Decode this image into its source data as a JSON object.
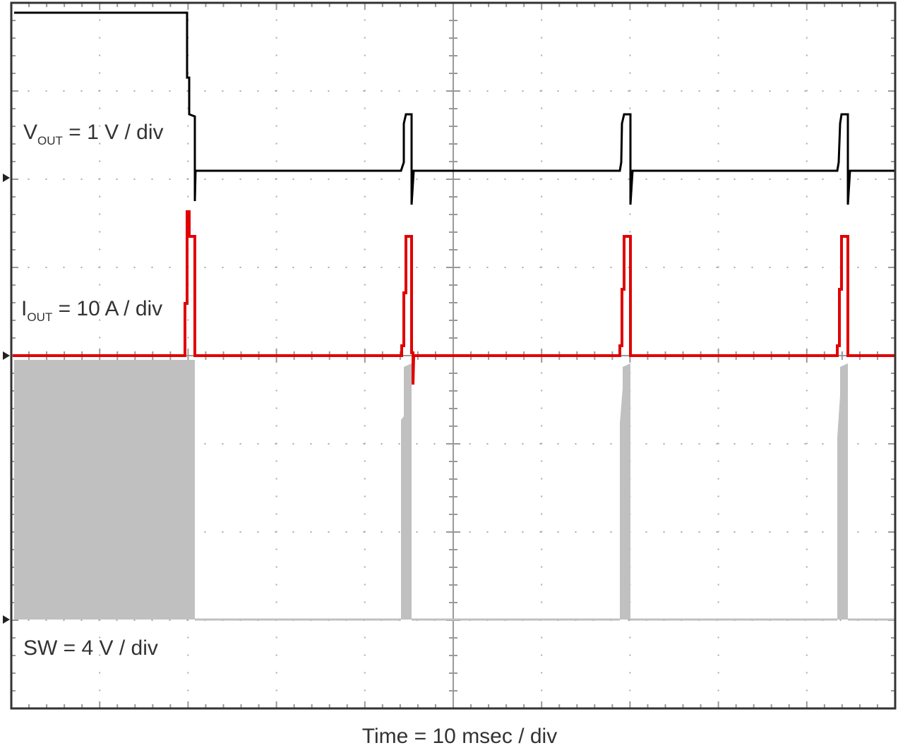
{
  "traces": [
    {
      "symbol": "V",
      "subscript": "OUT",
      "scale": " = 1 V / div"
    },
    {
      "symbol": "I",
      "subscript": "OUT",
      "scale": " = 10 A / div"
    },
    {
      "symbol": "SW",
      "scale": " = 4 V / div"
    }
  ],
  "x_axis_label": "Time = 10 msec / div"
}
